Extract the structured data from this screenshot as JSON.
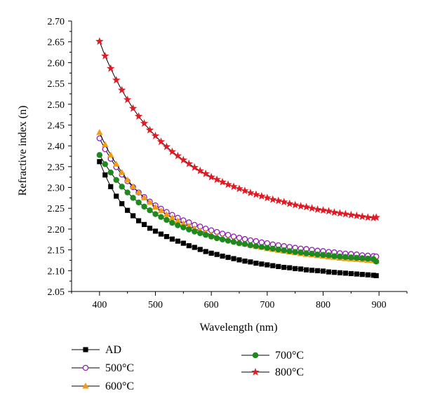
{
  "chart_data": {
    "type": "line",
    "title": "",
    "xlabel": "Wavelength (nm)",
    "ylabel": "Refractive index (n)",
    "xlim": [
      350,
      950
    ],
    "ylim": [
      2.05,
      2.7
    ],
    "xticks": [
      "400",
      "500",
      "600",
      "700",
      "800",
      "900"
    ],
    "yticks": [
      "2.05",
      "2.10",
      "2.15",
      "2.20",
      "2.25",
      "2.30",
      "2.35",
      "2.40",
      "2.45",
      "2.50",
      "2.55",
      "2.60",
      "2.65",
      "2.70"
    ],
    "grid": false,
    "legend_position": "bottom",
    "x": [
      400,
      410,
      420,
      430,
      440,
      450,
      460,
      470,
      480,
      490,
      500,
      510,
      520,
      530,
      540,
      550,
      560,
      570,
      580,
      590,
      600,
      610,
      620,
      630,
      640,
      650,
      660,
      670,
      680,
      690,
      700,
      710,
      720,
      730,
      740,
      750,
      760,
      770,
      780,
      790,
      800,
      810,
      820,
      830,
      840,
      850,
      860,
      870,
      880,
      890,
      895
    ],
    "series": [
      {
        "name": "AD",
        "color": "#000000",
        "marker": "square",
        "values": [
          2.362,
          2.33,
          2.302,
          2.279,
          2.261,
          2.245,
          2.232,
          2.22,
          2.211,
          2.202,
          2.195,
          2.188,
          2.182,
          2.176,
          2.171,
          2.166,
          2.16,
          2.156,
          2.151,
          2.146,
          2.142,
          2.139,
          2.135,
          2.132,
          2.129,
          2.126,
          2.123,
          2.121,
          2.118,
          2.116,
          2.114,
          2.112,
          2.11,
          2.108,
          2.107,
          2.105,
          2.104,
          2.102,
          2.101,
          2.1,
          2.099,
          2.097,
          2.096,
          2.095,
          2.094,
          2.093,
          2.092,
          2.091,
          2.09,
          2.089,
          2.088
        ]
      },
      {
        "name": "500°C",
        "color": "#8e24aa",
        "marker": "circle-open",
        "values": [
          2.418,
          2.392,
          2.369,
          2.349,
          2.331,
          2.315,
          2.301,
          2.288,
          2.277,
          2.266,
          2.257,
          2.249,
          2.241,
          2.234,
          2.227,
          2.221,
          2.216,
          2.21,
          2.206,
          2.201,
          2.197,
          2.193,
          2.189,
          2.186,
          2.182,
          2.179,
          2.176,
          2.173,
          2.171,
          2.168,
          2.166,
          2.163,
          2.161,
          2.159,
          2.157,
          2.155,
          2.153,
          2.152,
          2.15,
          2.148,
          2.147,
          2.145,
          2.144,
          2.142,
          2.141,
          2.14,
          2.139,
          2.137,
          2.136,
          2.135,
          2.134
        ]
      },
      {
        "name": "600°C",
        "color": "#f39c12",
        "marker": "triangle",
        "values": [
          2.432,
          2.403,
          2.378,
          2.356,
          2.336,
          2.318,
          2.302,
          2.288,
          2.275,
          2.264,
          2.253,
          2.244,
          2.235,
          2.227,
          2.22,
          2.213,
          2.207,
          2.201,
          2.196,
          2.191,
          2.186,
          2.182,
          2.178,
          2.174,
          2.171,
          2.167,
          2.164,
          2.161,
          2.158,
          2.156,
          2.153,
          2.151,
          2.149,
          2.147,
          2.145,
          2.143,
          2.141,
          2.139,
          2.138,
          2.136,
          2.135,
          2.133,
          2.132,
          2.13,
          2.129,
          2.128,
          2.127,
          2.126,
          2.125,
          2.124,
          2.123
        ]
      },
      {
        "name": "700°C",
        "color": "#1e8a1e",
        "marker": "circle",
        "values": [
          2.378,
          2.356,
          2.336,
          2.318,
          2.302,
          2.288,
          2.275,
          2.264,
          2.254,
          2.245,
          2.236,
          2.229,
          2.222,
          2.215,
          2.209,
          2.204,
          2.199,
          2.194,
          2.19,
          2.186,
          2.182,
          2.178,
          2.175,
          2.172,
          2.169,
          2.166,
          2.164,
          2.161,
          2.159,
          2.157,
          2.155,
          2.153,
          2.151,
          2.149,
          2.147,
          2.145,
          2.144,
          2.142,
          2.141,
          2.139,
          2.138,
          2.137,
          2.135,
          2.134,
          2.133,
          2.132,
          2.131,
          2.13,
          2.129,
          2.128,
          2.122
        ]
      },
      {
        "name": "800°C",
        "color": "#e01b24",
        "marker": "star",
        "values": [
          2.651,
          2.616,
          2.586,
          2.558,
          2.534,
          2.511,
          2.49,
          2.471,
          2.454,
          2.438,
          2.424,
          2.41,
          2.398,
          2.386,
          2.376,
          2.366,
          2.357,
          2.348,
          2.34,
          2.333,
          2.325,
          2.319,
          2.313,
          2.307,
          2.302,
          2.297,
          2.292,
          2.287,
          2.283,
          2.279,
          2.275,
          2.271,
          2.268,
          2.265,
          2.261,
          2.258,
          2.255,
          2.253,
          2.25,
          2.247,
          2.245,
          2.243,
          2.24,
          2.238,
          2.236,
          2.234,
          2.232,
          2.23,
          2.228,
          2.227,
          2.228
        ]
      }
    ]
  }
}
